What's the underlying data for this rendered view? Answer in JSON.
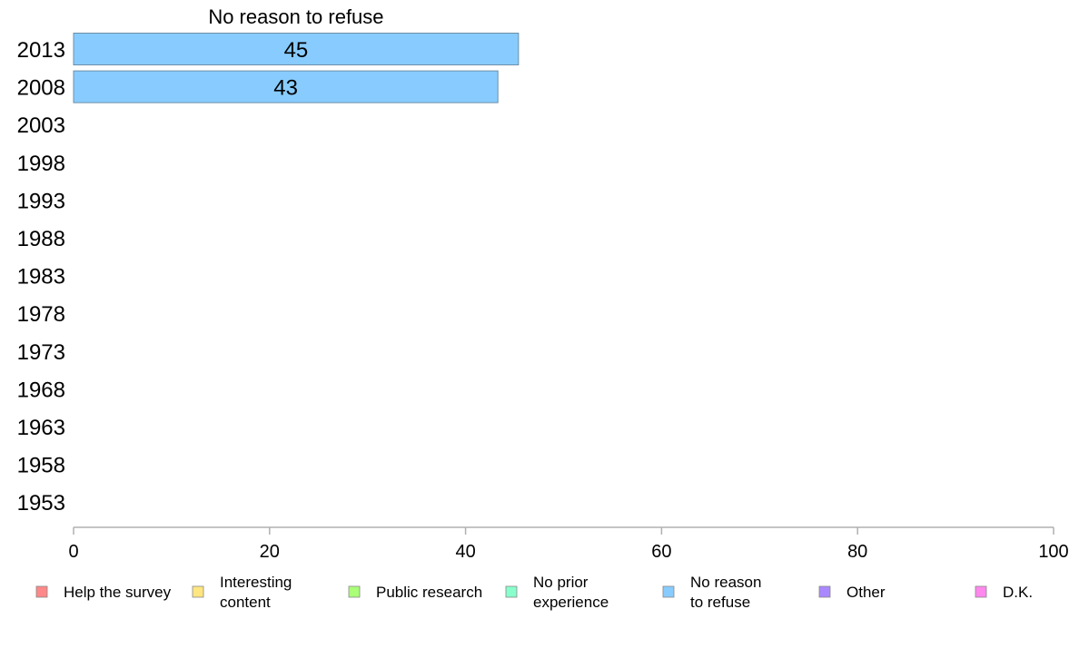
{
  "chart_data": {
    "type": "bar",
    "orientation": "horizontal",
    "title": "No reason to refuse",
    "categories": [
      "2013",
      "2008",
      "2003",
      "1998",
      "1993",
      "1988",
      "1983",
      "1978",
      "1973",
      "1968",
      "1963",
      "1958",
      "1953"
    ],
    "series": [
      {
        "name": "No reason to refuse",
        "color": "#88ccff",
        "values": [
          45.4,
          43.3,
          null,
          null,
          null,
          null,
          null,
          null,
          null,
          null,
          null,
          null,
          null
        ],
        "labels": [
          "45",
          "43",
          "",
          "",
          "",
          "",
          "",
          "",
          "",
          "",
          "",
          "",
          ""
        ]
      }
    ],
    "xlim": [
      0,
      100
    ],
    "xticks": [
      0,
      20,
      40,
      60,
      80,
      100
    ],
    "xtick_labels": [
      "0",
      "20",
      "40",
      "60",
      "80",
      "100"
    ],
    "grid": false,
    "legend_position": "bottom",
    "legend": [
      {
        "lines": [
          "Help the survey"
        ],
        "color": "#ff8888"
      },
      {
        "lines": [
          "Interesting",
          "content"
        ],
        "color": "#ffe680"
      },
      {
        "lines": [
          "Public research"
        ],
        "color": "#aaff77"
      },
      {
        "lines": [
          "No prior",
          "experience"
        ],
        "color": "#88ffcc"
      },
      {
        "lines": [
          "No reason",
          "to refuse"
        ],
        "color": "#88ccff"
      },
      {
        "lines": [
          "Other"
        ],
        "color": "#aa88ff"
      },
      {
        "lines": [
          "D.K."
        ],
        "color": "#ff88ee"
      }
    ]
  }
}
